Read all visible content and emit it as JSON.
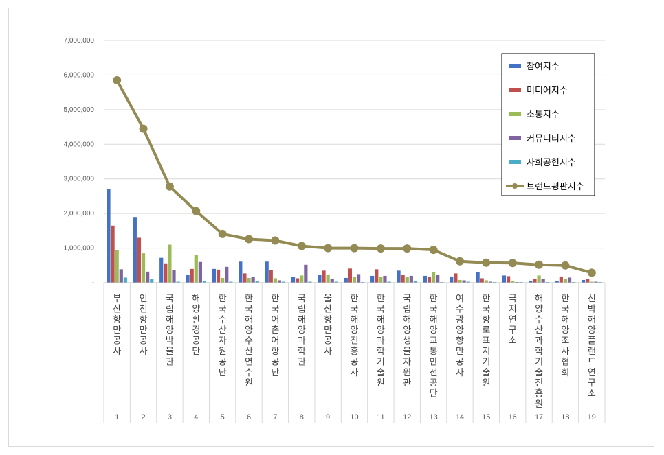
{
  "chart_data": {
    "type": "bar",
    "title": "",
    "xlabel": "",
    "ylabel": "",
    "ylim": [
      0,
      7000000
    ],
    "yticks": [
      "-",
      "1,000,000",
      "2,000,000",
      "3,000,000",
      "4,000,000",
      "5,000,000",
      "6,000,000",
      "7,000,000"
    ],
    "grid": true,
    "legend_position": "top-right",
    "categories": [
      "부산항만공사",
      "인천항만공사",
      "국립해양박물관",
      "해양환경공단",
      "한국수산자원공단",
      "한국해양수산연수원",
      "한국어촌어항공단",
      "국립해양과학관",
      "울산항만공사",
      "한국해양진흥공사",
      "한국해양과학기술원",
      "국립해양생물자원관",
      "한국해양교통안전공단",
      "여수광양항만공사",
      "한국항로표지기술원",
      "극지연구소",
      "해양수산과학기술진흥원",
      "한국해양조사협회",
      "선박해양플랜트연구소"
    ],
    "index_labels": [
      "1",
      "2",
      "3",
      "4",
      "5",
      "6",
      "7",
      "8",
      "9",
      "10",
      "11",
      "12",
      "13",
      "14",
      "15",
      "16",
      "17",
      "18",
      "19"
    ],
    "series": [
      {
        "name": "참여지수",
        "kind": "bar",
        "color": "#4472c4",
        "values": [
          2700000,
          1900000,
          720000,
          230000,
          400000,
          610000,
          610000,
          160000,
          220000,
          140000,
          200000,
          350000,
          200000,
          180000,
          310000,
          210000,
          50000,
          40000,
          80000
        ]
      },
      {
        "name": "미디어지수",
        "kind": "bar",
        "color": "#c0504d",
        "values": [
          1650000,
          1300000,
          560000,
          400000,
          380000,
          270000,
          360000,
          130000,
          350000,
          410000,
          390000,
          220000,
          160000,
          270000,
          130000,
          190000,
          100000,
          180000,
          110000
        ]
      },
      {
        "name": "소통지수",
        "kind": "bar",
        "color": "#9bbb59",
        "values": [
          950000,
          850000,
          1100000,
          800000,
          140000,
          140000,
          130000,
          210000,
          240000,
          170000,
          160000,
          160000,
          300000,
          80000,
          70000,
          60000,
          210000,
          110000,
          30000
        ]
      },
      {
        "name": "커뮤니티지수",
        "kind": "bar",
        "color": "#8064a2",
        "values": [
          390000,
          320000,
          360000,
          600000,
          460000,
          170000,
          70000,
          520000,
          120000,
          250000,
          200000,
          200000,
          230000,
          70000,
          30000,
          20000,
          120000,
          150000,
          30000
        ]
      },
      {
        "name": "사회공헌지수",
        "kind": "bar",
        "color": "#4bacc6",
        "values": [
          150000,
          110000,
          30000,
          50000,
          30000,
          40000,
          30000,
          30000,
          30000,
          20000,
          30000,
          40000,
          20000,
          30000,
          20000,
          20000,
          20000,
          20000,
          20000
        ]
      },
      {
        "name": "브랜드평판지수",
        "kind": "line",
        "color": "#948a54",
        "values": [
          5850000,
          4450000,
          2780000,
          2070000,
          1410000,
          1260000,
          1220000,
          1060000,
          1000000,
          1000000,
          990000,
          990000,
          950000,
          620000,
          580000,
          570000,
          520000,
          500000,
          290000
        ]
      }
    ]
  }
}
